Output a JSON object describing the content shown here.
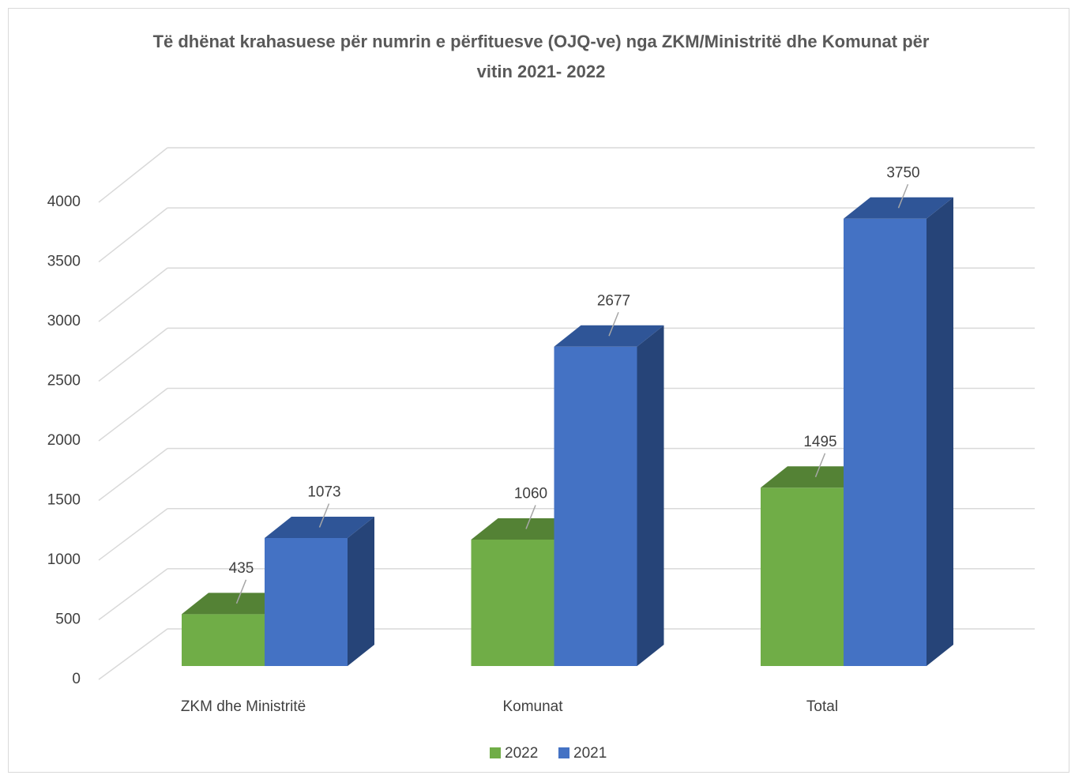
{
  "chart_data": {
    "type": "bar3d",
    "title": "Të dhënat krahasuese për numrin e përfituesve (OJQ-ve) nga ZKM/Ministritë  dhe Komunat për vitin 2021- 2022",
    "categories": [
      "ZKM dhe Ministritë",
      "Komunat",
      "Total"
    ],
    "series": [
      {
        "name": "2022",
        "color": "#70ad47",
        "top_color": "#548235",
        "side_color": "#4e7a32",
        "values": [
          435,
          1060,
          1495
        ]
      },
      {
        "name": "2021",
        "color": "#4472c4",
        "top_color": "#2f5597",
        "side_color": "#264478",
        "values": [
          1073,
          2677,
          3750
        ]
      }
    ],
    "ylim": [
      0,
      4000
    ],
    "yticks": [
      0,
      500,
      1000,
      1500,
      2000,
      2500,
      3000,
      3500,
      4000
    ],
    "grid": true,
    "legend": "bottom"
  }
}
